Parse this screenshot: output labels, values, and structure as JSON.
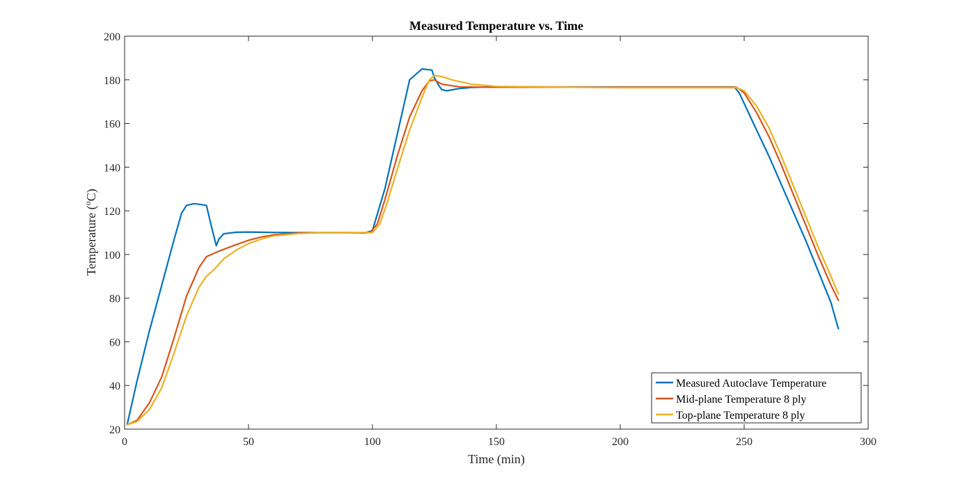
{
  "chart_data": {
    "type": "line",
    "title": "Measured Temperature vs. Time",
    "xlabel": "Time (min)",
    "ylabel_main": "Temperature (",
    "ylabel_sup": "o",
    "ylabel_end": "C)",
    "xlim": [
      0,
      300
    ],
    "ylim": [
      20,
      200
    ],
    "xticks": [
      0,
      50,
      100,
      150,
      200,
      250,
      300
    ],
    "yticks": [
      20,
      40,
      60,
      80,
      100,
      120,
      140,
      160,
      180,
      200
    ],
    "grid": false,
    "legend_position": "bottom-right",
    "series": [
      {
        "name": "Measured Autoclave Temperature",
        "color": "#0072BD",
        "points": [
          [
            1,
            22
          ],
          [
            5,
            42
          ],
          [
            10,
            65
          ],
          [
            15,
            86
          ],
          [
            20,
            107
          ],
          [
            23,
            119
          ],
          [
            25,
            122.5
          ],
          [
            28,
            123.3
          ],
          [
            30,
            123
          ],
          [
            33,
            122.5
          ],
          [
            35,
            113
          ],
          [
            37,
            104
          ],
          [
            38,
            107
          ],
          [
            40,
            109.5
          ],
          [
            45,
            110.2
          ],
          [
            50,
            110.3
          ],
          [
            60,
            110.1
          ],
          [
            70,
            110
          ],
          [
            80,
            110
          ],
          [
            90,
            110
          ],
          [
            97,
            109.8
          ],
          [
            100,
            111
          ],
          [
            105,
            130
          ],
          [
            110,
            155
          ],
          [
            115,
            180
          ],
          [
            120,
            185
          ],
          [
            124,
            184.5
          ],
          [
            125,
            181
          ],
          [
            127,
            177
          ],
          [
            128,
            175.5
          ],
          [
            130,
            175
          ],
          [
            135,
            176
          ],
          [
            140,
            176.5
          ],
          [
            150,
            176.8
          ],
          [
            200,
            176.7
          ],
          [
            246,
            176.7
          ],
          [
            248,
            174
          ],
          [
            255,
            157
          ],
          [
            260,
            145
          ],
          [
            265,
            132
          ],
          [
            270,
            119
          ],
          [
            275,
            106
          ],
          [
            280,
            92
          ],
          [
            285,
            78
          ],
          [
            287,
            70
          ],
          [
            288,
            66
          ]
        ]
      },
      {
        "name": "Mid-plane Temperature 8 ply",
        "color": "#D95319",
        "points": [
          [
            1,
            22
          ],
          [
            5,
            24
          ],
          [
            10,
            32
          ],
          [
            15,
            44
          ],
          [
            20,
            62
          ],
          [
            25,
            81
          ],
          [
            30,
            94
          ],
          [
            33,
            99
          ],
          [
            38,
            101.5
          ],
          [
            45,
            104.5
          ],
          [
            50,
            106.5
          ],
          [
            55,
            108
          ],
          [
            60,
            109
          ],
          [
            70,
            109.8
          ],
          [
            80,
            110
          ],
          [
            99,
            110
          ],
          [
            102,
            114
          ],
          [
            105,
            125
          ],
          [
            110,
            145
          ],
          [
            115,
            163
          ],
          [
            120,
            175
          ],
          [
            123,
            179.5
          ],
          [
            125,
            180
          ],
          [
            128,
            178
          ],
          [
            135,
            176.8
          ],
          [
            145,
            176.6
          ],
          [
            200,
            176.6
          ],
          [
            247,
            176.6
          ],
          [
            250,
            174
          ],
          [
            255,
            165
          ],
          [
            260,
            154
          ],
          [
            265,
            141
          ],
          [
            270,
            127
          ],
          [
            275,
            113
          ],
          [
            280,
            99
          ],
          [
            285,
            86
          ],
          [
            288,
            79
          ]
        ]
      },
      {
        "name": "Top-plane Temperature 8 ply",
        "color": "#EDB120",
        "points": [
          [
            1,
            22
          ],
          [
            5,
            23.5
          ],
          [
            10,
            29
          ],
          [
            15,
            39
          ],
          [
            20,
            55
          ],
          [
            25,
            72
          ],
          [
            30,
            85
          ],
          [
            33,
            90
          ],
          [
            36,
            93
          ],
          [
            40,
            98
          ],
          [
            45,
            102
          ],
          [
            50,
            105
          ],
          [
            55,
            107
          ],
          [
            60,
            108.5
          ],
          [
            70,
            109.6
          ],
          [
            80,
            110
          ],
          [
            100,
            110
          ],
          [
            103,
            114
          ],
          [
            106,
            124
          ],
          [
            110,
            139
          ],
          [
            115,
            157
          ],
          [
            120,
            172
          ],
          [
            123,
            180
          ],
          [
            125,
            182
          ],
          [
            128,
            181.5
          ],
          [
            132,
            180
          ],
          [
            140,
            178
          ],
          [
            150,
            177
          ],
          [
            200,
            176.4
          ],
          [
            247,
            176.4
          ],
          [
            250,
            175
          ],
          [
            255,
            168
          ],
          [
            260,
            158
          ],
          [
            265,
            145
          ],
          [
            270,
            131
          ],
          [
            275,
            117
          ],
          [
            280,
            103
          ],
          [
            285,
            90
          ],
          [
            288,
            82
          ]
        ]
      }
    ]
  }
}
